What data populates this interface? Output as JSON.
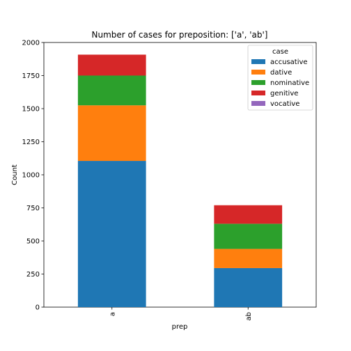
{
  "chart_data": {
    "type": "bar",
    "stacked": true,
    "title": "Number of cases for preposition: ['a', 'ab']",
    "xlabel": "prep",
    "ylabel": "Count",
    "categories": [
      "a",
      "ab"
    ],
    "ylim": [
      0,
      2000
    ],
    "yticks": [
      0,
      250,
      500,
      750,
      1000,
      1250,
      1500,
      1750,
      2000
    ],
    "legend": {
      "title": "case",
      "position": "top-right"
    },
    "series": [
      {
        "name": "accusative",
        "color": "#1f77b4",
        "values": [
          1105,
          295
        ]
      },
      {
        "name": "dative",
        "color": "#ff7f0e",
        "values": [
          420,
          145
        ]
      },
      {
        "name": "nominative",
        "color": "#2ca02c",
        "values": [
          225,
          190
        ]
      },
      {
        "name": "genitive",
        "color": "#d62728",
        "values": [
          158,
          140
        ]
      },
      {
        "name": "vocative",
        "color": "#9467bd",
        "values": [
          0,
          0
        ]
      }
    ]
  }
}
